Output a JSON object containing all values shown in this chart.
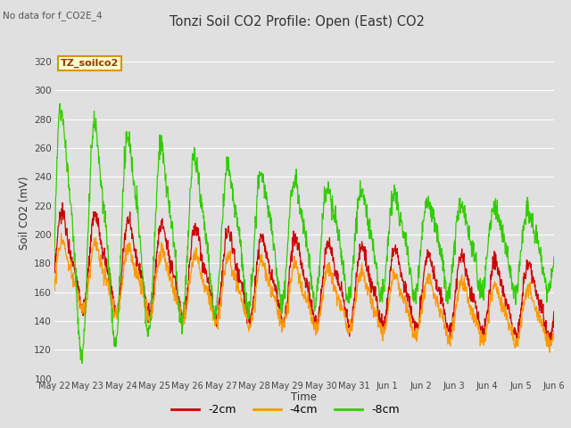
{
  "title": "Tonzi Soil CO2 Profile: Open (East) CO2",
  "subtitle": "No data for f_CO2E_4",
  "xlabel": "Time",
  "ylabel": "Soil CO2 (mV)",
  "ylim": [
    100,
    330
  ],
  "yticks": [
    100,
    120,
    140,
    160,
    180,
    200,
    220,
    240,
    260,
    280,
    300,
    320
  ],
  "legend_label": "TZ_soilco2",
  "series_labels": [
    "-2cm",
    "-4cm",
    "-8cm"
  ],
  "series_colors": [
    "#cc0000",
    "#ff9900",
    "#33cc00"
  ],
  "background_color": "#e0e0e0",
  "plot_bg_color": "#e0e0e0",
  "grid_color": "#ffffff",
  "xtick_labels": [
    "May 22",
    "May 23",
    "May 24",
    "May 25",
    "May 26",
    "May 27",
    "May 28",
    "May 29",
    "May 30",
    "May 31",
    "Jun 1",
    "Jun 2",
    "Jun 3",
    "Jun 4",
    "Jun 5",
    "Jun 6"
  ],
  "n_days": 15
}
